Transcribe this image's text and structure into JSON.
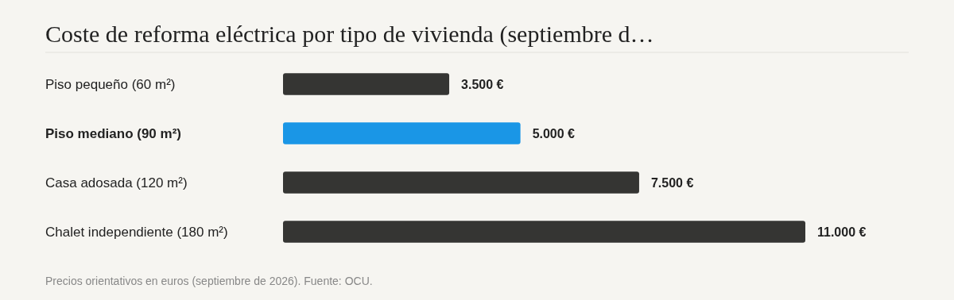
{
  "chart_data": {
    "type": "bar",
    "orientation": "horizontal",
    "title": "Coste de reforma eléctrica por tipo de vivienda (septiembre d…",
    "categories": [
      "Piso pequeño (60 m²)",
      "Piso mediano (90 m²)",
      "Casa adosada (120 m²)",
      "Chalet independiente (180 m²)"
    ],
    "values": [
      3500,
      5000,
      7500,
      11000
    ],
    "colors": [
      "#353533",
      "#1a96e6",
      "#353533",
      "#353533"
    ],
    "value_labels": [
      "3.500 €",
      "5.000 €",
      "7.500 €",
      "11.000 €"
    ],
    "annotations": [
      "Precios orientativos en euros (septiembre de 2026). Fuente: OCU."
    ]
  }
}
